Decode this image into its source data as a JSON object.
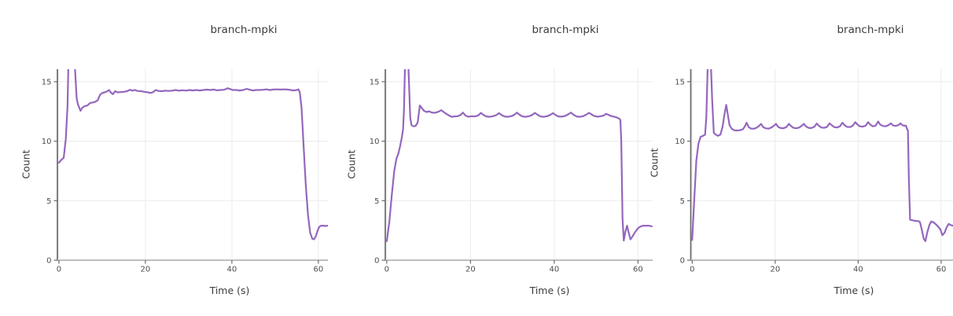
{
  "figure": {
    "background": "#ffffff"
  },
  "style": {
    "grid_color": "#eeeeee",
    "spine_left_color": "#6a6a6a",
    "spine_bottom_color": "#b5b5b5",
    "tick_color": "#6a6a6a",
    "tick_label_color": "#4d4d4d",
    "text_color": "#3c3c3c"
  },
  "chart_data": [
    {
      "type": "line",
      "title": "branch-mpki",
      "xlabel": "Time (s)",
      "ylabel": "Count",
      "xticks": [
        0,
        20,
        40,
        60
      ],
      "x_tick_labels": [
        "0",
        "20",
        "40",
        "60"
      ],
      "yticks": [
        0,
        5,
        10,
        15
      ],
      "y_tick_labels": [
        "0",
        "5",
        "10",
        "15"
      ],
      "xlim": [
        -0.35,
        62.2
      ],
      "ylim": [
        0,
        16.05
      ],
      "grid": true,
      "legend": "none",
      "line_color": "#9467bd",
      "points": [
        [
          0,
          8.2
        ],
        [
          0.6,
          8.45
        ],
        [
          1.1,
          8.6
        ],
        [
          1.6,
          10.2
        ],
        [
          2.0,
          13.0
        ],
        [
          2.2,
          16.5
        ],
        [
          2.5,
          18
        ],
        [
          3.4,
          18
        ],
        [
          3.7,
          16.2
        ],
        [
          4.1,
          13.6
        ],
        [
          4.4,
          13.1
        ],
        [
          5.0,
          12.55
        ],
        [
          5.4,
          12.8
        ],
        [
          6.0,
          12.95
        ],
        [
          6.6,
          13.0
        ],
        [
          7.2,
          13.2
        ],
        [
          7.8,
          13.25
        ],
        [
          8.4,
          13.3
        ],
        [
          9.0,
          13.45
        ],
        [
          9.5,
          13.9
        ],
        [
          10.0,
          14.05
        ],
        [
          10.6,
          14.1
        ],
        [
          11.2,
          14.2
        ],
        [
          11.6,
          14.3
        ],
        [
          12.1,
          14.05
        ],
        [
          12.5,
          13.95
        ],
        [
          13.0,
          14.2
        ],
        [
          13.6,
          14.1
        ],
        [
          14.2,
          14.12
        ],
        [
          15.0,
          14.15
        ],
        [
          15.8,
          14.2
        ],
        [
          16.4,
          14.32
        ],
        [
          17.0,
          14.25
        ],
        [
          17.6,
          14.3
        ],
        [
          18.2,
          14.22
        ],
        [
          19.0,
          14.2
        ],
        [
          19.8,
          14.15
        ],
        [
          20.6,
          14.1
        ],
        [
          21.2,
          14.05
        ],
        [
          21.8,
          14.12
        ],
        [
          22.4,
          14.3
        ],
        [
          23.0,
          14.22
        ],
        [
          23.8,
          14.2
        ],
        [
          24.6,
          14.25
        ],
        [
          25.4,
          14.22
        ],
        [
          26.2,
          14.25
        ],
        [
          27.0,
          14.3
        ],
        [
          27.8,
          14.24
        ],
        [
          28.6,
          14.28
        ],
        [
          29.4,
          14.25
        ],
        [
          30.2,
          14.3
        ],
        [
          31.0,
          14.26
        ],
        [
          31.8,
          14.3
        ],
        [
          32.6,
          14.26
        ],
        [
          33.4,
          14.3
        ],
        [
          34.2,
          14.33
        ],
        [
          35.0,
          14.3
        ],
        [
          35.8,
          14.34
        ],
        [
          36.6,
          14.27
        ],
        [
          37.4,
          14.3
        ],
        [
          38.2,
          14.32
        ],
        [
          39.0,
          14.45
        ],
        [
          39.6,
          14.38
        ],
        [
          40.2,
          14.3
        ],
        [
          41.0,
          14.3
        ],
        [
          41.8,
          14.26
        ],
        [
          42.6,
          14.3
        ],
        [
          43.4,
          14.4
        ],
        [
          44.0,
          14.34
        ],
        [
          44.8,
          14.26
        ],
        [
          45.6,
          14.3
        ],
        [
          46.4,
          14.3
        ],
        [
          47.2,
          14.32
        ],
        [
          48.0,
          14.35
        ],
        [
          48.8,
          14.3
        ],
        [
          49.6,
          14.34
        ],
        [
          50.4,
          14.35
        ],
        [
          51.2,
          14.34
        ],
        [
          52.0,
          14.35
        ],
        [
          52.8,
          14.34
        ],
        [
          53.6,
          14.3
        ],
        [
          54.4,
          14.26
        ],
        [
          55.0,
          14.3
        ],
        [
          55.4,
          14.35
        ],
        [
          55.7,
          14.1
        ],
        [
          56.1,
          12.8
        ],
        [
          56.6,
          9.5
        ],
        [
          57.1,
          6.2
        ],
        [
          57.6,
          3.8
        ],
        [
          58.1,
          2.3
        ],
        [
          58.6,
          1.8
        ],
        [
          59.0,
          1.75
        ],
        [
          59.4,
          2.0
        ],
        [
          59.8,
          2.45
        ],
        [
          60.2,
          2.8
        ],
        [
          60.6,
          2.9
        ],
        [
          61.2,
          2.9
        ],
        [
          61.7,
          2.87
        ],
        [
          62.1,
          2.9
        ]
      ]
    },
    {
      "type": "line",
      "title": "branch-mpki",
      "xlabel": "Time (s)",
      "ylabel": "Count",
      "xticks": [
        0,
        20,
        40,
        60
      ],
      "x_tick_labels": [
        "0",
        "20",
        "40",
        "60"
      ],
      "yticks": [
        0,
        5,
        10,
        15
      ],
      "y_tick_labels": [
        "0",
        "5",
        "10",
        "15"
      ],
      "xlim": [
        -0.35,
        63.5
      ],
      "ylim": [
        0,
        16.05
      ],
      "grid": true,
      "legend": "none",
      "line_color": "#9467bd",
      "points": [
        [
          0,
          1.6
        ],
        [
          0.6,
          3.2
        ],
        [
          1.2,
          5.5
        ],
        [
          1.8,
          7.5
        ],
        [
          2.3,
          8.5
        ],
        [
          2.8,
          9.0
        ],
        [
          3.2,
          9.6
        ],
        [
          3.6,
          10.3
        ],
        [
          3.9,
          11.0
        ],
        [
          4.1,
          12.5
        ],
        [
          4.4,
          17
        ],
        [
          5.0,
          18
        ],
        [
          5.3,
          15
        ],
        [
          5.6,
          12.0
        ],
        [
          5.9,
          11.35
        ],
        [
          6.4,
          11.25
        ],
        [
          6.9,
          11.28
        ],
        [
          7.4,
          11.6
        ],
        [
          7.9,
          13.0
        ],
        [
          8.3,
          12.8
        ],
        [
          8.9,
          12.55
        ],
        [
          9.5,
          12.45
        ],
        [
          10.1,
          12.5
        ],
        [
          10.7,
          12.42
        ],
        [
          11.3,
          12.38
        ],
        [
          11.9,
          12.42
        ],
        [
          12.5,
          12.5
        ],
        [
          13.0,
          12.6
        ],
        [
          13.6,
          12.45
        ],
        [
          14.2,
          12.3
        ],
        [
          14.9,
          12.15
        ],
        [
          15.5,
          12.05
        ],
        [
          16.2,
          12.08
        ],
        [
          17.0,
          12.1
        ],
        [
          17.6,
          12.2
        ],
        [
          18.2,
          12.4
        ],
        [
          18.8,
          12.15
        ],
        [
          19.5,
          12.05
        ],
        [
          20.2,
          12.1
        ],
        [
          21.0,
          12.08
        ],
        [
          21.8,
          12.15
        ],
        [
          22.5,
          12.38
        ],
        [
          23.1,
          12.2
        ],
        [
          23.8,
          12.08
        ],
        [
          24.6,
          12.05
        ],
        [
          25.4,
          12.1
        ],
        [
          26.1,
          12.18
        ],
        [
          26.8,
          12.36
        ],
        [
          27.4,
          12.2
        ],
        [
          28.1,
          12.08
        ],
        [
          28.9,
          12.05
        ],
        [
          29.7,
          12.1
        ],
        [
          30.4,
          12.2
        ],
        [
          31.1,
          12.4
        ],
        [
          31.7,
          12.22
        ],
        [
          32.4,
          12.08
        ],
        [
          33.2,
          12.05
        ],
        [
          34.0,
          12.1
        ],
        [
          34.7,
          12.2
        ],
        [
          35.4,
          12.38
        ],
        [
          36.0,
          12.22
        ],
        [
          36.7,
          12.08
        ],
        [
          37.5,
          12.05
        ],
        [
          38.3,
          12.1
        ],
        [
          39.0,
          12.2
        ],
        [
          39.7,
          12.36
        ],
        [
          40.3,
          12.2
        ],
        [
          41.0,
          12.08
        ],
        [
          41.8,
          12.06
        ],
        [
          42.6,
          12.12
        ],
        [
          43.3,
          12.25
        ],
        [
          44.0,
          12.4
        ],
        [
          44.6,
          12.22
        ],
        [
          45.3,
          12.08
        ],
        [
          46.1,
          12.05
        ],
        [
          46.9,
          12.1
        ],
        [
          47.6,
          12.22
        ],
        [
          48.3,
          12.38
        ],
        [
          48.9,
          12.25
        ],
        [
          49.6,
          12.1
        ],
        [
          50.4,
          12.06
        ],
        [
          51.1,
          12.1
        ],
        [
          51.8,
          12.15
        ],
        [
          52.4,
          12.3
        ],
        [
          53.0,
          12.2
        ],
        [
          53.7,
          12.1
        ],
        [
          54.4,
          12.05
        ],
        [
          55.0,
          11.98
        ],
        [
          55.5,
          11.9
        ],
        [
          55.8,
          11.78
        ],
        [
          56.0,
          10.0
        ],
        [
          56.3,
          3.5
        ],
        [
          56.6,
          1.65
        ],
        [
          57.0,
          2.4
        ],
        [
          57.4,
          2.9
        ],
        [
          57.8,
          2.3
        ],
        [
          58.2,
          1.75
        ],
        [
          58.7,
          2.0
        ],
        [
          59.2,
          2.3
        ],
        [
          59.7,
          2.55
        ],
        [
          60.2,
          2.75
        ],
        [
          60.7,
          2.85
        ],
        [
          61.3,
          2.9
        ],
        [
          61.9,
          2.9
        ],
        [
          62.6,
          2.9
        ],
        [
          63.3,
          2.85
        ]
      ]
    },
    {
      "type": "line",
      "title": "branch-mpki",
      "xlabel": "Time (s)",
      "ylabel": "Count",
      "xticks": [
        0,
        20,
        40,
        60
      ],
      "x_tick_labels": [
        "0",
        "20",
        "40",
        "60"
      ],
      "yticks": [
        0,
        5,
        10,
        15
      ],
      "y_tick_labels": [
        "0",
        "5",
        "10",
        "15"
      ],
      "xlim": [
        -0.35,
        62.85
      ],
      "ylim": [
        0,
        16.05
      ],
      "grid": true,
      "legend": "none",
      "line_color": "#9467bd",
      "points": [
        [
          0,
          1.7
        ],
        [
          0.5,
          5.2
        ],
        [
          1.0,
          8.4
        ],
        [
          1.5,
          9.8
        ],
        [
          2.0,
          10.35
        ],
        [
          2.6,
          10.45
        ],
        [
          3.1,
          10.55
        ],
        [
          3.4,
          12.0
        ],
        [
          3.7,
          16
        ],
        [
          4.1,
          18
        ],
        [
          4.5,
          16.5
        ],
        [
          4.8,
          13.5
        ],
        [
          5.2,
          10.7
        ],
        [
          5.7,
          10.55
        ],
        [
          6.2,
          10.45
        ],
        [
          6.8,
          10.55
        ],
        [
          7.3,
          11.2
        ],
        [
          7.8,
          12.3
        ],
        [
          8.2,
          13.05
        ],
        [
          8.6,
          12.2
        ],
        [
          9.0,
          11.35
        ],
        [
          9.5,
          11.05
        ],
        [
          10.1,
          10.92
        ],
        [
          10.8,
          10.9
        ],
        [
          11.5,
          10.92
        ],
        [
          12.2,
          11.0
        ],
        [
          12.7,
          11.25
        ],
        [
          13.1,
          11.55
        ],
        [
          13.6,
          11.18
        ],
        [
          14.2,
          11.05
        ],
        [
          14.9,
          11.05
        ],
        [
          15.5,
          11.12
        ],
        [
          16.1,
          11.28
        ],
        [
          16.6,
          11.45
        ],
        [
          17.1,
          11.18
        ],
        [
          17.7,
          11.08
        ],
        [
          18.4,
          11.05
        ],
        [
          19.1,
          11.15
        ],
        [
          19.7,
          11.3
        ],
        [
          20.2,
          11.45
        ],
        [
          20.7,
          11.2
        ],
        [
          21.3,
          11.1
        ],
        [
          22.0,
          11.08
        ],
        [
          22.7,
          11.18
        ],
        [
          23.3,
          11.45
        ],
        [
          23.8,
          11.28
        ],
        [
          24.4,
          11.12
        ],
        [
          25.1,
          11.08
        ],
        [
          25.8,
          11.15
        ],
        [
          26.4,
          11.3
        ],
        [
          26.9,
          11.45
        ],
        [
          27.4,
          11.25
        ],
        [
          28.0,
          11.12
        ],
        [
          28.7,
          11.1
        ],
        [
          29.4,
          11.2
        ],
        [
          30.0,
          11.48
        ],
        [
          30.5,
          11.3
        ],
        [
          31.1,
          11.15
        ],
        [
          31.8,
          11.12
        ],
        [
          32.5,
          11.2
        ],
        [
          33.1,
          11.5
        ],
        [
          33.6,
          11.35
        ],
        [
          34.2,
          11.18
        ],
        [
          34.9,
          11.15
        ],
        [
          35.6,
          11.25
        ],
        [
          36.2,
          11.55
        ],
        [
          36.7,
          11.35
        ],
        [
          37.3,
          11.2
        ],
        [
          38.0,
          11.18
        ],
        [
          38.7,
          11.3
        ],
        [
          39.3,
          11.6
        ],
        [
          39.8,
          11.4
        ],
        [
          40.4,
          11.25
        ],
        [
          41.1,
          11.22
        ],
        [
          41.8,
          11.3
        ],
        [
          42.4,
          11.6
        ],
        [
          42.9,
          11.4
        ],
        [
          43.5,
          11.25
        ],
        [
          44.2,
          11.3
        ],
        [
          44.8,
          11.65
        ],
        [
          45.3,
          11.4
        ],
        [
          45.9,
          11.28
        ],
        [
          46.6,
          11.25
        ],
        [
          47.3,
          11.35
        ],
        [
          47.9,
          11.5
        ],
        [
          48.4,
          11.32
        ],
        [
          49.0,
          11.28
        ],
        [
          49.7,
          11.35
        ],
        [
          50.2,
          11.5
        ],
        [
          50.6,
          11.35
        ],
        [
          51.1,
          11.3
        ],
        [
          51.5,
          11.3
        ],
        [
          51.8,
          11.0
        ],
        [
          52.0,
          10.9
        ],
        [
          52.2,
          7.0
        ],
        [
          52.5,
          3.4
        ],
        [
          53.1,
          3.35
        ],
        [
          53.8,
          3.3
        ],
        [
          54.5,
          3.28
        ],
        [
          54.9,
          3.2
        ],
        [
          55.3,
          2.6
        ],
        [
          55.8,
          1.8
        ],
        [
          56.2,
          1.6
        ],
        [
          56.7,
          2.4
        ],
        [
          57.2,
          3.0
        ],
        [
          57.6,
          3.25
        ],
        [
          58.1,
          3.2
        ],
        [
          58.6,
          3.05
        ],
        [
          59.2,
          2.85
        ],
        [
          59.8,
          2.6
        ],
        [
          60.3,
          2.1
        ],
        [
          60.8,
          2.3
        ],
        [
          61.3,
          2.75
        ],
        [
          61.8,
          3.05
        ],
        [
          62.3,
          2.95
        ],
        [
          62.8,
          2.9
        ]
      ]
    }
  ]
}
